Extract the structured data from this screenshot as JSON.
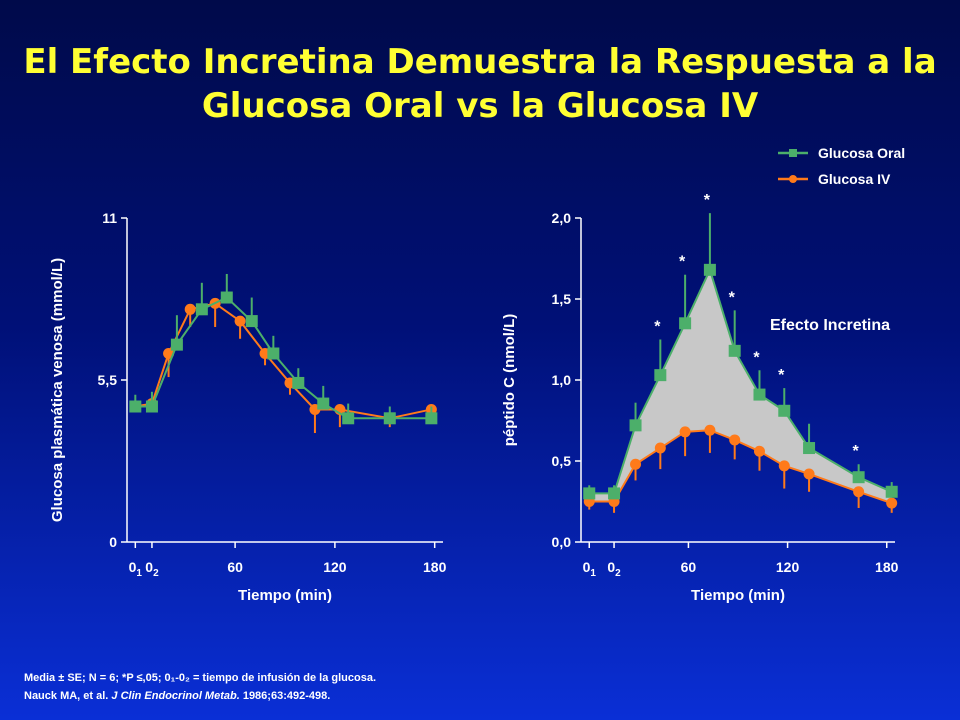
{
  "title": {
    "line1": "El Efecto Incretina Demuestra la Respuesta a la",
    "line2": "Glucosa Oral vs la Glucosa IV"
  },
  "colors": {
    "title": "#ffff33",
    "oral": "#4caf6a",
    "iv": "#ff7a1a",
    "fill": "#c8c8c8"
  },
  "legend": {
    "oral": "Glucosa Oral",
    "iv": "Glucosa IV"
  },
  "annotation": "Efecto Incretina",
  "footnote": {
    "line1": "Media ± SE; N = 6; *P ≤,05; 0₁-0₂ = tiempo de infusión de la glucosa.",
    "line2_authors": "Nauck MA, et al. ",
    "line2_journal": "J Clin Endocrinol Metab.",
    "line2_rest": " 1986;63:492-498."
  },
  "chart_data": [
    {
      "type": "line",
      "ylabel": "Glucosa plasmática venosa (mmol/L)",
      "xlabel": "Tiempo (min)",
      "xlim": [
        -5,
        185
      ],
      "ylim": [
        0,
        11
      ],
      "xticks": [
        {
          "v": 0,
          "label": "0",
          "sub": "1"
        },
        {
          "v": 10,
          "label": "0",
          "sub": "2"
        },
        {
          "v": 60,
          "label": "60"
        },
        {
          "v": 120,
          "label": "120"
        },
        {
          "v": 180,
          "label": "180"
        }
      ],
      "yticks": [
        {
          "v": 0,
          "label": "0"
        },
        {
          "v": 5.5,
          "label": "5,5"
        },
        {
          "v": 11,
          "label": "11"
        }
      ],
      "series": [
        {
          "name": "Glucosa IV",
          "marker": "circle",
          "x": [
            0,
            10,
            20,
            33,
            48,
            63,
            78,
            93,
            108,
            123,
            153,
            178
          ],
          "y": [
            4.6,
            4.7,
            6.4,
            7.9,
            8.1,
            7.5,
            6.4,
            5.4,
            4.5,
            4.5,
            4.2,
            4.5
          ],
          "err": [
            0.2,
            0.2,
            0.8,
            0.6,
            0.8,
            0.6,
            0.4,
            0.4,
            0.8,
            0.6,
            0.3,
            0.3
          ]
        },
        {
          "name": "Glucosa Oral",
          "marker": "square",
          "x": [
            0,
            10,
            25,
            40,
            55,
            70,
            83,
            98,
            113,
            128,
            153,
            178
          ],
          "y": [
            4.6,
            4.6,
            6.7,
            7.9,
            8.3,
            7.5,
            6.4,
            5.4,
            4.7,
            4.2,
            4.2,
            4.2
          ],
          "err": [
            0.4,
            0.5,
            1.0,
            0.9,
            0.8,
            0.8,
            0.6,
            0.5,
            0.6,
            0.5,
            0.4,
            0.4
          ]
        }
      ]
    },
    {
      "type": "line",
      "ylabel": "péptido C (nmol/L)",
      "xlabel": "Tiempo (min)",
      "xlim": [
        -5,
        185
      ],
      "ylim": [
        0,
        2.0
      ],
      "xticks": [
        {
          "v": 0,
          "label": "0",
          "sub": "1"
        },
        {
          "v": 15,
          "label": "0",
          "sub": "2"
        },
        {
          "v": 60,
          "label": "60"
        },
        {
          "v": 120,
          "label": "120"
        },
        {
          "v": 180,
          "label": "180"
        }
      ],
      "yticks": [
        {
          "v": 0,
          "label": "0,0"
        },
        {
          "v": 0.5,
          "label": "0,5"
        },
        {
          "v": 1.0,
          "label": "1,0"
        },
        {
          "v": 1.5,
          "label": "1,5"
        },
        {
          "v": 2.0,
          "label": "2,0"
        }
      ],
      "series": [
        {
          "name": "Glucosa Oral",
          "marker": "square",
          "x": [
            0,
            15,
            28,
            43,
            58,
            73,
            88,
            103,
            118,
            133,
            163,
            183
          ],
          "y": [
            0.3,
            0.3,
            0.72,
            1.03,
            1.35,
            1.68,
            1.18,
            0.91,
            0.81,
            0.58,
            0.4,
            0.31
          ],
          "err": [
            0.05,
            0.05,
            0.14,
            0.22,
            0.3,
            0.35,
            0.25,
            0.15,
            0.14,
            0.15,
            0.08,
            0.06
          ],
          "star": [
            false,
            false,
            false,
            true,
            true,
            true,
            true,
            true,
            true,
            false,
            true,
            false
          ]
        },
        {
          "name": "Glucosa IV",
          "marker": "circle",
          "x": [
            0,
            15,
            28,
            43,
            58,
            73,
            88,
            103,
            118,
            133,
            163,
            183
          ],
          "y": [
            0.25,
            0.25,
            0.48,
            0.58,
            0.68,
            0.69,
            0.63,
            0.56,
            0.47,
            0.42,
            0.31,
            0.24
          ],
          "err": [
            0.05,
            0.07,
            0.1,
            0.13,
            0.15,
            0.14,
            0.12,
            0.12,
            0.14,
            0.11,
            0.1,
            0.06
          ]
        }
      ]
    }
  ]
}
